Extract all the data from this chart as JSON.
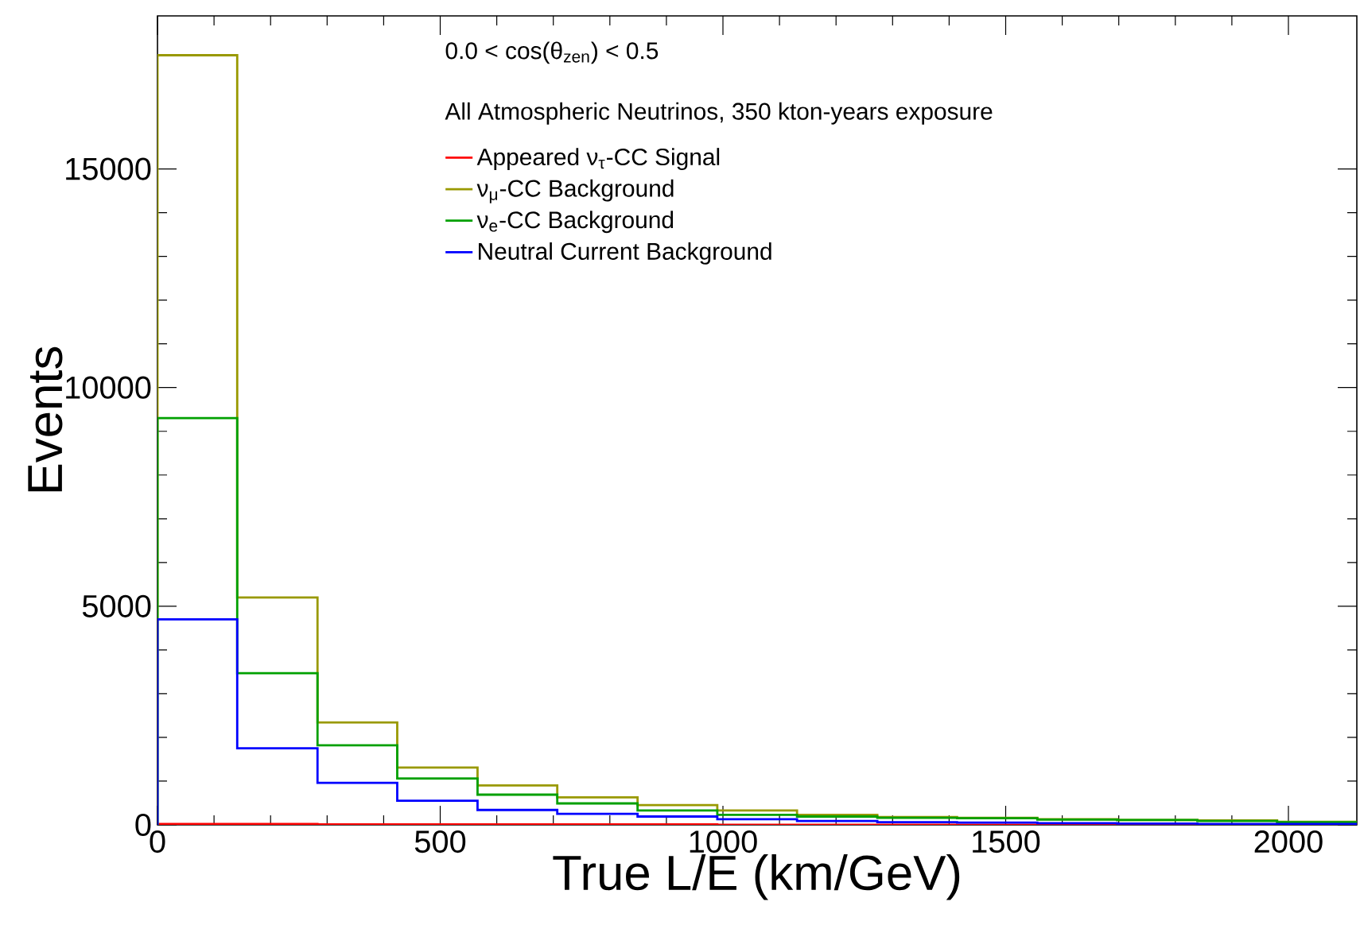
{
  "chart_data": {
    "type": "histogram",
    "title": "0.0 < cos(θ$_{zen}$) < 0.5",
    "legend_title": "All Atmospheric Neutrinos, 350 kton-years exposure",
    "xlabel": "True L/E (km/GeV)",
    "ylabel": "Events",
    "bins": [
      0,
      141,
      283,
      424,
      566,
      707,
      849,
      990,
      1131,
      1273,
      1414,
      1556,
      1697,
      1839,
      1980,
      2121
    ],
    "series": [
      {
        "name": "Appeared ν$_{τ}$-CC Signal",
        "color": "#ff0000",
        "values": [
          20,
          20,
          10,
          10,
          10,
          10,
          10,
          0,
          0,
          0,
          0,
          0,
          0,
          0,
          0
        ]
      },
      {
        "name": "ν$_{μ}$-CC Background",
        "color": "#999900",
        "values": [
          17600,
          5200,
          2340,
          1310,
          900,
          630,
          450,
          330,
          230,
          180,
          160,
          130,
          110,
          100,
          70
        ]
      },
      {
        "name": "ν$_{e}$-CC Background",
        "color": "#00a000",
        "values": [
          9300,
          3470,
          1820,
          1060,
          690,
          490,
          330,
          230,
          190,
          160,
          150,
          120,
          110,
          90,
          60
        ]
      },
      {
        "name": "Neutral Current Background",
        "color": "#0000ff",
        "values": [
          4700,
          1750,
          960,
          550,
          340,
          250,
          190,
          130,
          90,
          60,
          50,
          40,
          30,
          20,
          20
        ]
      }
    ],
    "xlim": [
      0,
      2121
    ],
    "ylim": [
      0,
      18500
    ],
    "xticks": [
      0,
      500,
      1000,
      1500,
      2000
    ],
    "yticks": [
      0,
      5000,
      10000,
      15000
    ],
    "legend": "top"
  }
}
